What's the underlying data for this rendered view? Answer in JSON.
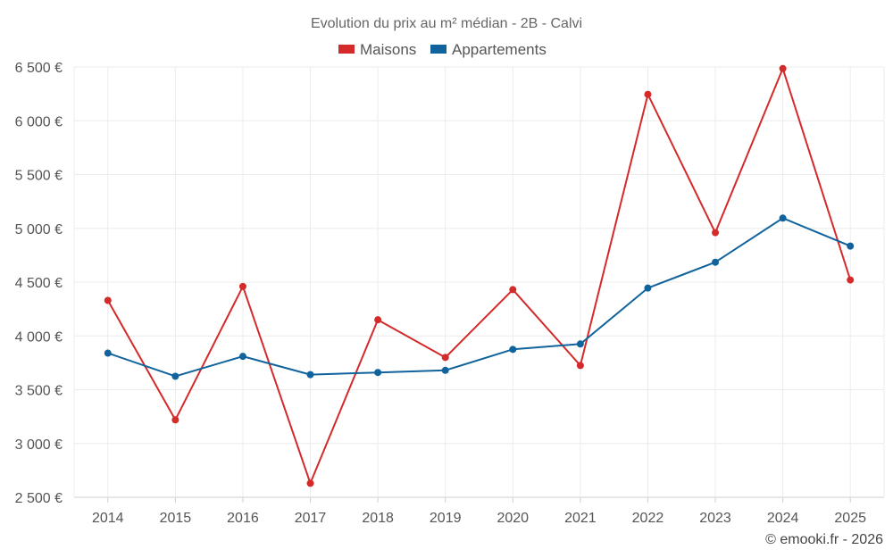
{
  "chart_data": {
    "type": "line",
    "title": "Evolution du prix au m² médian - 2B - Calvi",
    "categories": [
      "2014",
      "2015",
      "2016",
      "2017",
      "2018",
      "2019",
      "2020",
      "2021",
      "2022",
      "2023",
      "2024",
      "2025"
    ],
    "series": [
      {
        "name": "Maisons",
        "color": "#d42a2a",
        "values": [
          4330,
          3220,
          4460,
          2630,
          4150,
          3800,
          4430,
          3725,
          6245,
          4960,
          6485,
          4520
        ]
      },
      {
        "name": "Appartements",
        "color": "#10639c",
        "values": [
          3840,
          3625,
          3810,
          3640,
          3660,
          3680,
          3875,
          3925,
          4445,
          4685,
          5095,
          4835
        ]
      }
    ],
    "ylim": [
      2500,
      6500
    ],
    "yticks": [
      {
        "value": 2500,
        "label": "2 500 €"
      },
      {
        "value": 3000,
        "label": "3 000 €"
      },
      {
        "value": 3500,
        "label": "3 500 €"
      },
      {
        "value": 4000,
        "label": "4 000 €"
      },
      {
        "value": 4500,
        "label": "4 500 €"
      },
      {
        "value": 5000,
        "label": "5 000 €"
      },
      {
        "value": 5500,
        "label": "5 500 €"
      },
      {
        "value": 6000,
        "label": "6 000 €"
      },
      {
        "value": 6500,
        "label": "6 500 €"
      }
    ],
    "xlabel": "",
    "ylabel": "",
    "legend_position": "top-center",
    "grid": true
  },
  "credit": "© emooki.fr - 2026"
}
